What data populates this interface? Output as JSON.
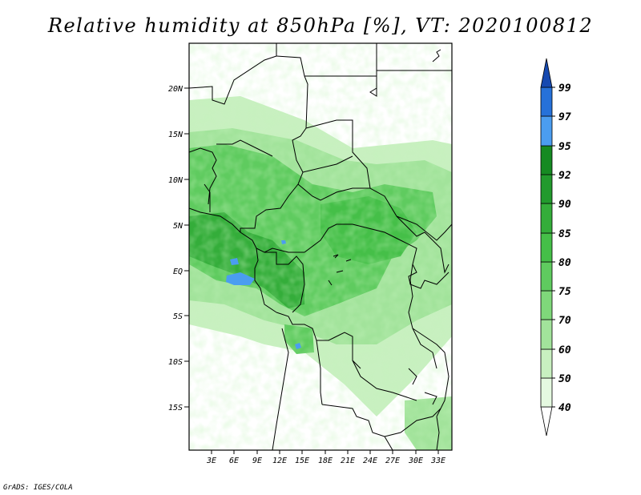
{
  "title": "Relative humidity at 850hPa [%], VT: 2020100812",
  "footer": "GrADS: IGES/COLA",
  "map": {
    "lon_range": [
      0,
      36
    ],
    "lat_range": [
      -20,
      25
    ],
    "lat_ticks": [
      "20N",
      "15N",
      "10N",
      "5N",
      "EQ",
      "5S",
      "10S",
      "15S"
    ],
    "lon_ticks": [
      "3E",
      "6E",
      "9E",
      "12E",
      "15E",
      "18E",
      "21E",
      "24E",
      "27E",
      "30E",
      "33E"
    ]
  },
  "colorbar": {
    "labels": [
      "40",
      "50",
      "60",
      "70",
      "75",
      "80",
      "85",
      "90",
      "92",
      "95",
      "97",
      "99"
    ],
    "colors": [
      "#ffffff",
      "#e5f9e0",
      "#c8f0c0",
      "#a2e39b",
      "#7fd87a",
      "#5fcb5f",
      "#45bf48",
      "#34ad3a",
      "#229a2d",
      "#168a22",
      "#4b9df0",
      "#2671d9",
      "#1649b0"
    ]
  }
}
